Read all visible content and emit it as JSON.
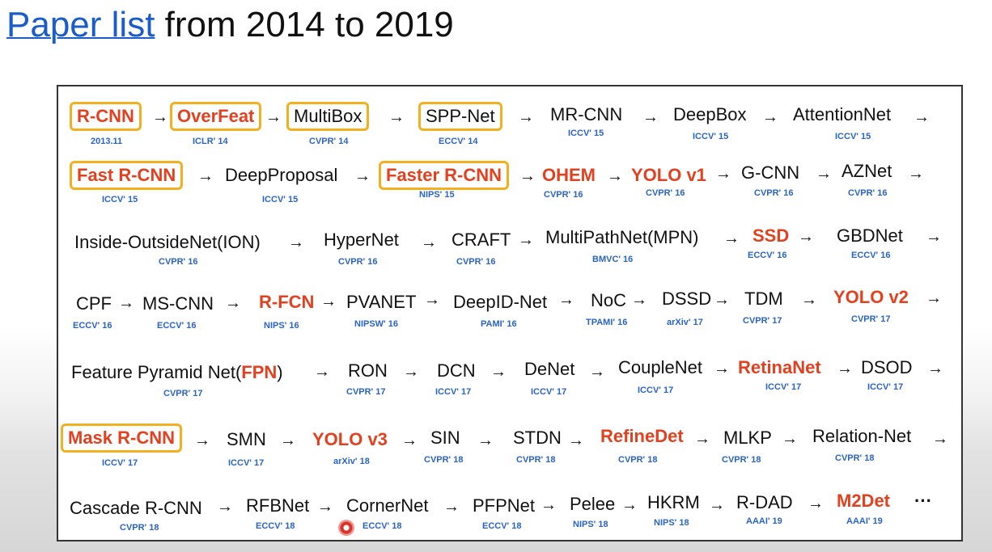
{
  "title": {
    "link_text": "Paper list",
    "rest_text": " from 2014 to 2019"
  },
  "rows": [
    {
      "items": [
        {
          "name": "R-CNN",
          "venue": "2013.11"
        },
        {
          "name": "OverFeat",
          "venue": "ICLR' 14"
        },
        {
          "name": "MultiBox",
          "venue": "CVPR' 14"
        },
        {
          "name": "SPP-Net",
          "venue": "ECCV' 14"
        },
        {
          "name": "MR-CNN",
          "venue": "ICCV' 15"
        },
        {
          "name": "DeepBox",
          "venue": "ICCV' 15"
        },
        {
          "name": "AttentionNet",
          "venue": "ICCV' 15"
        }
      ]
    },
    {
      "items": [
        {
          "name": "Fast R-CNN",
          "venue": "ICCV' 15"
        },
        {
          "name": "DeepProposal",
          "venue": "ICCV' 15"
        },
        {
          "name": "Faster R-CNN",
          "venue": "NIPS' 15"
        },
        {
          "name": "OHEM",
          "venue": "CVPR' 16"
        },
        {
          "name": "YOLO v1",
          "venue": "CVPR' 16"
        },
        {
          "name": "G-CNN",
          "venue": "CVPR' 16"
        },
        {
          "name": "AZNet",
          "venue": "CVPR' 16"
        }
      ]
    },
    {
      "items": [
        {
          "name": "Inside-OutsideNet(ION)",
          "venue": "CVPR' 16"
        },
        {
          "name": "HyperNet",
          "venue": "CVPR' 16"
        },
        {
          "name": "CRAFT",
          "venue": "CVPR' 16"
        },
        {
          "name": "MultiPathNet(MPN)",
          "venue": "BMVC' 16"
        },
        {
          "name": "SSD",
          "venue": "ECCV' 16"
        },
        {
          "name": "GBDNet",
          "venue": "ECCV' 16"
        }
      ]
    },
    {
      "items": [
        {
          "name": "CPF",
          "venue": "ECCV' 16"
        },
        {
          "name": "MS-CNN",
          "venue": "ECCV' 16"
        },
        {
          "name": "R-FCN",
          "venue": "NIPS' 16"
        },
        {
          "name": "PVANET",
          "venue": "NIPSW' 16"
        },
        {
          "name": "DeepID-Net",
          "venue": "PAMI' 16"
        },
        {
          "name": "NoC",
          "venue": "TPAMI' 16"
        },
        {
          "name": "DSSD",
          "venue": "arXiv' 17"
        },
        {
          "name": "TDM",
          "venue": "CVPR' 17"
        },
        {
          "name": "YOLO v2",
          "venue": "CVPR' 17"
        }
      ]
    },
    {
      "items": [
        {
          "name_prefix": "Feature Pyramid Net(",
          "name_highlight": "FPN",
          "name_suffix": ")",
          "venue": "CVPR' 17"
        },
        {
          "name": "RON",
          "venue": "CVPR' 17"
        },
        {
          "name": "DCN",
          "venue": "ICCV' 17"
        },
        {
          "name": "DeNet",
          "venue": "ICCV' 17"
        },
        {
          "name": "CoupleNet",
          "venue": "ICCV' 17"
        },
        {
          "name": "RetinaNet",
          "venue": "ICCV' 17"
        },
        {
          "name": "DSOD",
          "venue": "ICCV' 17"
        }
      ]
    },
    {
      "items": [
        {
          "name": "Mask R-CNN",
          "venue": "ICCV' 17"
        },
        {
          "name": "SMN",
          "venue": "ICCV' 17"
        },
        {
          "name": "YOLO v3",
          "venue": "arXiv' 18"
        },
        {
          "name": "SIN",
          "venue": "CVPR' 18"
        },
        {
          "name": "STDN",
          "venue": "CVPR' 18"
        },
        {
          "name": "RefineDet",
          "venue": "CVPR' 18"
        },
        {
          "name": "MLKP",
          "venue": "CVPR' 18"
        },
        {
          "name": "Relation-Net",
          "venue": "CVPR' 18"
        }
      ]
    },
    {
      "items": [
        {
          "name": "Cascade R-CNN",
          "venue": "CVPR' 18"
        },
        {
          "name": "RFBNet",
          "venue": "ECCV' 18"
        },
        {
          "name": "CornerNet",
          "venue": "ECCV' 18"
        },
        {
          "name": "PFPNet",
          "venue": "ECCV' 18"
        },
        {
          "name": "Pelee",
          "venue": "NIPS' 18"
        },
        {
          "name": "HKRM",
          "venue": "NIPS' 18"
        },
        {
          "name": "R-DAD",
          "venue": "AAAI' 19"
        },
        {
          "name": "M2Det",
          "venue": "AAAI' 19"
        }
      ]
    }
  ],
  "arrow_symbol": "→",
  "ellipsis": "···",
  "colors": {
    "highlight_red": "#e2401e",
    "box_gold": "#f2b01e",
    "venue_blue": "#2a63c4",
    "link_blue": "#1a5cc9"
  }
}
